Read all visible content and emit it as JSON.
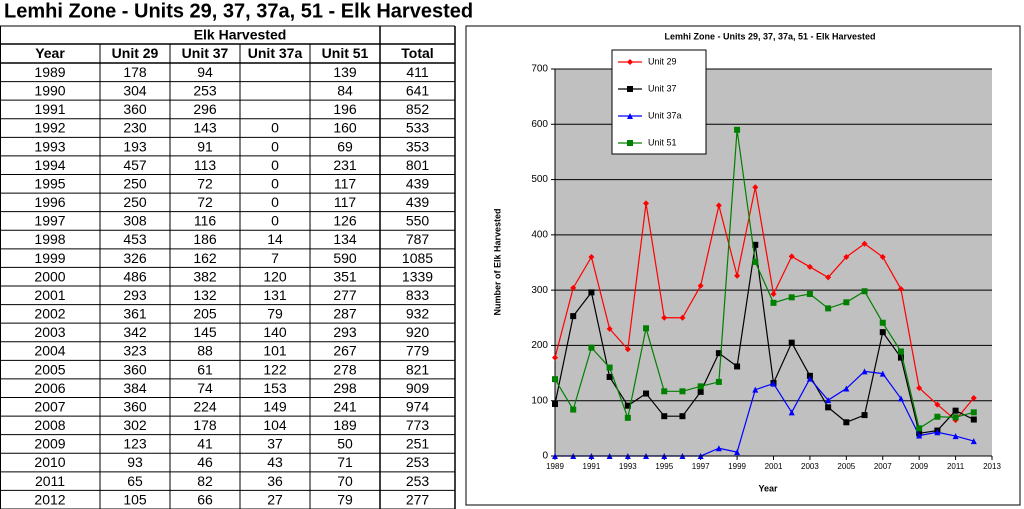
{
  "title": "Lemhi Zone - Units 29, 37, 37a, 51 - Elk Harvested",
  "table": {
    "group_header": "Elk Harvested",
    "columns": [
      "Year",
      "Unit 29",
      "Unit 37",
      "Unit 37a",
      "Unit 51",
      "Total"
    ],
    "rows": [
      [
        1989,
        178,
        94,
        null,
        139,
        411
      ],
      [
        1990,
        304,
        253,
        null,
        84,
        641
      ],
      [
        1991,
        360,
        296,
        null,
        196,
        852
      ],
      [
        1992,
        230,
        143,
        0,
        160,
        533
      ],
      [
        1993,
        193,
        91,
        0,
        69,
        353
      ],
      [
        1994,
        457,
        113,
        0,
        231,
        801
      ],
      [
        1995,
        250,
        72,
        0,
        117,
        439
      ],
      [
        1996,
        250,
        72,
        0,
        117,
        439
      ],
      [
        1997,
        308,
        116,
        0,
        126,
        550
      ],
      [
        1998,
        453,
        186,
        14,
        134,
        787
      ],
      [
        1999,
        326,
        162,
        7,
        590,
        1085
      ],
      [
        2000,
        486,
        382,
        120,
        351,
        1339
      ],
      [
        2001,
        293,
        132,
        131,
        277,
        833
      ],
      [
        2002,
        361,
        205,
        79,
        287,
        932
      ],
      [
        2003,
        342,
        145,
        140,
        293,
        920
      ],
      [
        2004,
        323,
        88,
        101,
        267,
        779
      ],
      [
        2005,
        360,
        61,
        122,
        278,
        821
      ],
      [
        2006,
        384,
        74,
        153,
        298,
        909
      ],
      [
        2007,
        360,
        224,
        149,
        241,
        974
      ],
      [
        2008,
        302,
        178,
        104,
        189,
        773
      ],
      [
        2009,
        123,
        41,
        37,
        50,
        251
      ],
      [
        2010,
        93,
        46,
        43,
        71,
        253
      ],
      [
        2011,
        65,
        82,
        36,
        70,
        253
      ],
      [
        2012,
        105,
        66,
        27,
        79,
        277
      ]
    ]
  },
  "chart_data": {
    "type": "line",
    "title": "Lemhi Zone - Units 29, 37, 37a, 51 - Elk Harvested",
    "xlabel": "Year",
    "ylabel": "Number of Elk Harvested",
    "x": [
      1989,
      1990,
      1991,
      1992,
      1993,
      1994,
      1995,
      1996,
      1997,
      1998,
      1999,
      2000,
      2001,
      2002,
      2003,
      2004,
      2005,
      2006,
      2007,
      2008,
      2009,
      2010,
      2011,
      2012
    ],
    "series": [
      {
        "name": "Unit 29",
        "color": "#ff0000",
        "marker": "diamond",
        "values": [
          178,
          304,
          360,
          230,
          193,
          457,
          250,
          250,
          308,
          453,
          326,
          486,
          293,
          361,
          342,
          323,
          360,
          384,
          360,
          302,
          123,
          93,
          65,
          105
        ]
      },
      {
        "name": "Unit 37",
        "color": "#000000",
        "marker": "square",
        "values": [
          94,
          253,
          296,
          143,
          91,
          113,
          72,
          72,
          116,
          186,
          162,
          382,
          132,
          205,
          145,
          88,
          61,
          74,
          224,
          178,
          41,
          46,
          82,
          66
        ]
      },
      {
        "name": "Unit 37a",
        "color": "#0000ff",
        "marker": "triangle",
        "values": [
          0,
          0,
          0,
          0,
          0,
          0,
          0,
          0,
          0,
          14,
          7,
          120,
          131,
          79,
          140,
          101,
          122,
          153,
          149,
          104,
          37,
          43,
          36,
          27
        ]
      },
      {
        "name": "Unit 51",
        "color": "#008000",
        "marker": "square",
        "values": [
          139,
          84,
          196,
          160,
          69,
          231,
          117,
          117,
          126,
          134,
          590,
          351,
          277,
          287,
          293,
          267,
          278,
          298,
          241,
          189,
          50,
          71,
          70,
          79
        ]
      }
    ],
    "xlim": [
      1989,
      2013
    ],
    "xticks": [
      1989,
      1991,
      1993,
      1995,
      1997,
      1999,
      2001,
      2003,
      2005,
      2007,
      2009,
      2011,
      2013
    ],
    "ylim": [
      0,
      700
    ],
    "yticks": [
      0,
      100,
      200,
      300,
      400,
      500,
      600,
      700
    ],
    "grid": true
  }
}
